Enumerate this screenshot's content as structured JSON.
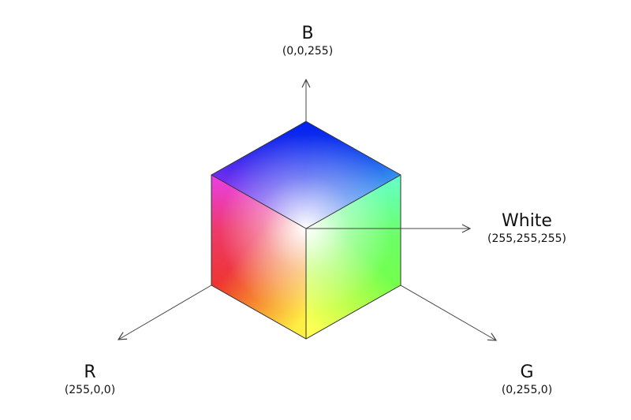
{
  "axes": {
    "b": {
      "name": "B",
      "value": "(0,0,255)",
      "color": "#0000ff"
    },
    "white": {
      "name": "White",
      "value": "(255,255,255)",
      "color": "#ffffff"
    },
    "r": {
      "name": "R",
      "value": "(255,0,0)",
      "color": "#ff0000"
    },
    "g": {
      "name": "G",
      "value": "(0,255,0)",
      "color": "#00ff00"
    }
  },
  "cube_colors": {
    "top_back": "#0022ee",
    "top_left": "#dd33ee",
    "top_right": "#66ffee",
    "left_bottom": "#ee3322",
    "right_bottom": "#77ff44",
    "bottom": "#ffff66",
    "center": "#ffffff",
    "edge_line": "#333333",
    "axis_line": "#444444"
  }
}
